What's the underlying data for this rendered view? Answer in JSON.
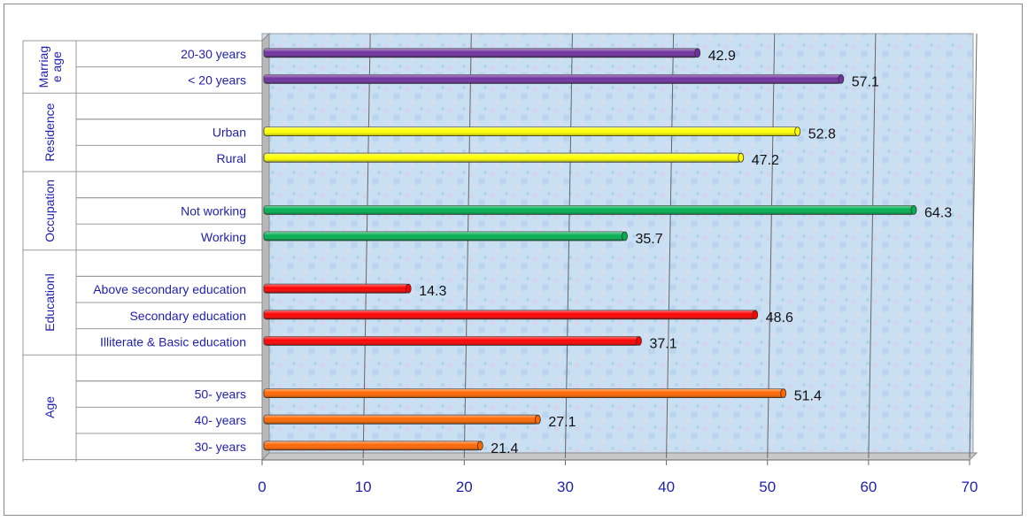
{
  "chart_data": {
    "type": "bar",
    "orientation": "horizontal",
    "title": "",
    "xlabel": "",
    "ylabel": "",
    "xlim": [
      0,
      70
    ],
    "x_ticks": [
      "0",
      "10",
      "20",
      "30",
      "40",
      "50",
      "60",
      "70"
    ],
    "grid": "vertical",
    "groups": [
      {
        "name": "Marriag e age",
        "name_lines": [
          "Marriag",
          "e age"
        ],
        "color": "#7030a0",
        "categories": [
          "20-30 years",
          "< 20 years"
        ],
        "values": [
          42.9,
          57.1
        ]
      },
      {
        "name": "Residence",
        "color": "#ffff00",
        "categories": [
          "Urban",
          "Rural"
        ],
        "values": [
          52.8,
          47.2
        ]
      },
      {
        "name": "Occupation",
        "color": "#00b050",
        "categories": [
          "Not working",
          "Working"
        ],
        "values": [
          64.3,
          35.7
        ]
      },
      {
        "name": "Educationl",
        "color": "#ff0000",
        "categories": [
          "Above secondary education",
          "Secondary education",
          "Illiterate & Basic education"
        ],
        "values": [
          14.3,
          48.6,
          37.1
        ]
      },
      {
        "name": "Age",
        "color": "#ff6600",
        "categories": [
          "50- years",
          "40- years",
          "30- years"
        ],
        "values": [
          51.4,
          27.1,
          21.4
        ]
      }
    ],
    "value_labels": [
      "42.9",
      "57.1",
      "52.8",
      "47.2",
      "64.3",
      "35.7",
      "14.3",
      "48.6",
      "37.1",
      "51.4",
      "27.1",
      "21.4"
    ]
  }
}
